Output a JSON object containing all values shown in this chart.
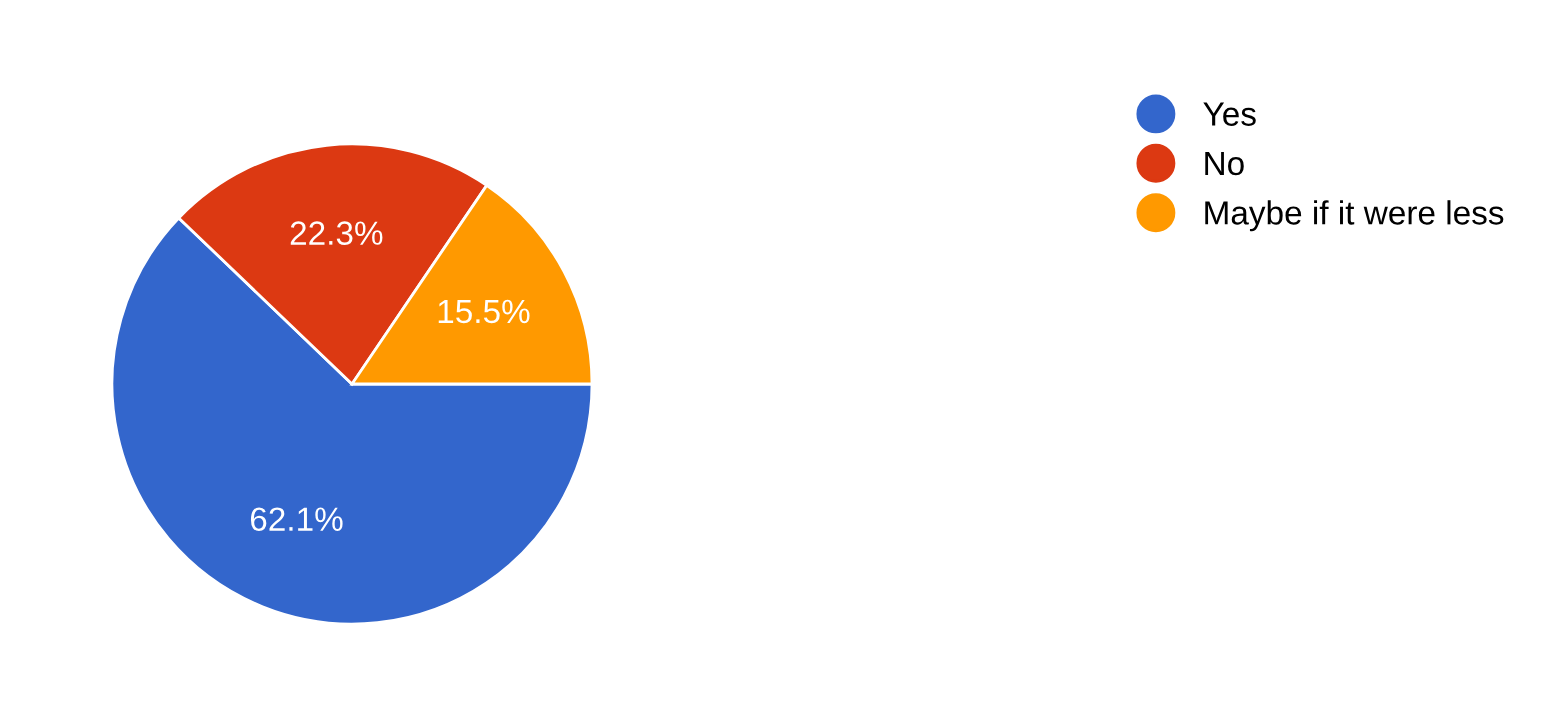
{
  "chart_data": {
    "type": "pie",
    "categories": [
      "Yes",
      "No",
      "Maybe if it were less"
    ],
    "values": [
      62.1,
      22.3,
      15.5
    ],
    "colors": [
      "#3366cc",
      "#dc3912",
      "#ff9900"
    ],
    "value_labels": [
      "62.1%",
      "22.3%",
      "15.5%"
    ],
    "legend": "top right"
  }
}
